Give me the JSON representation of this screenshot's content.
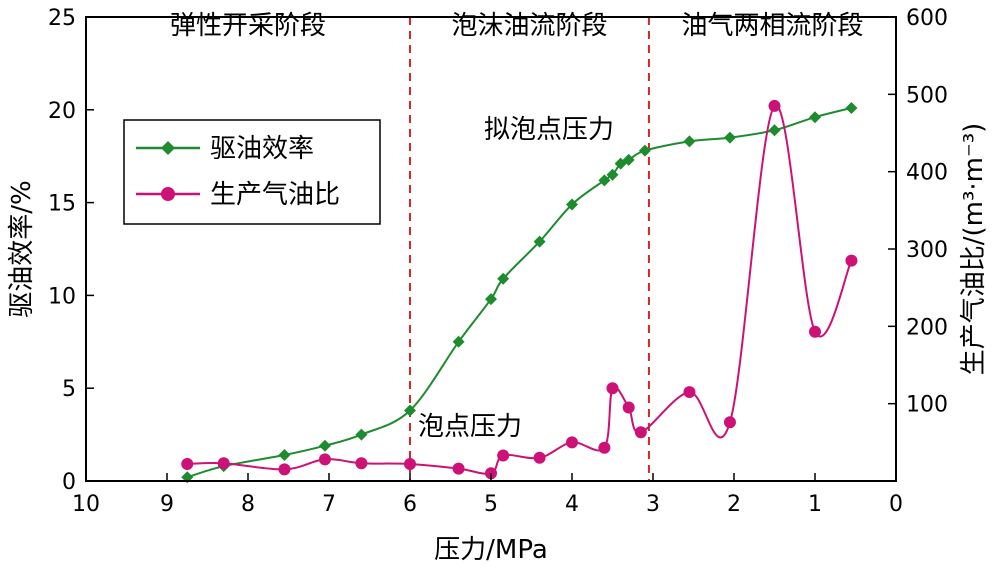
{
  "chart_data": {
    "type": "line",
    "xlabel": "压力/MPa",
    "ylabel_left": "驱油效率/%",
    "ylabel_right": "生产气油比/(m³·m⁻³)",
    "xlim": [
      10,
      0
    ],
    "x_reversed": true,
    "ylim_left": [
      0,
      25
    ],
    "ylim_right": [
      0,
      600
    ],
    "x_ticks": [
      "10",
      "9",
      "8",
      "7",
      "6",
      "5",
      "4",
      "3",
      "2",
      "1",
      "0"
    ],
    "y_left_ticks": [
      "0",
      "5",
      "10",
      "15",
      "20",
      "25"
    ],
    "y_right_ticks": [
      "100",
      "200",
      "300",
      "400",
      "500",
      "600"
    ],
    "grid": false,
    "legend_position": "upper-left",
    "region_boundaries": [
      6.0,
      3.05
    ],
    "region_labels": [
      "弹性开采阶段",
      "泡沫油流阶段",
      "油气两相流阶段"
    ],
    "annotations": [
      "泡点压力",
      "拟泡点压力"
    ],
    "series": [
      {
        "name": "驱油效率",
        "axis": "left",
        "color": "#1e8c2e",
        "marker": "diamond",
        "x": [
          8.75,
          8.3,
          7.55,
          7.05,
          6.6,
          6.0,
          5.4,
          5.0,
          4.85,
          4.4,
          4.0,
          3.6,
          3.5,
          3.4,
          3.3,
          3.1,
          2.55,
          2.05,
          1.5,
          1.0,
          0.55
        ],
        "y": [
          0.2,
          0.8,
          1.4,
          1.9,
          2.5,
          3.8,
          7.5,
          9.8,
          10.9,
          12.9,
          14.9,
          16.2,
          16.5,
          17.1,
          17.3,
          17.8,
          18.3,
          18.5,
          18.9,
          19.6,
          20.1
        ]
      },
      {
        "name": "生产气油比",
        "axis": "right",
        "color": "#cc1177",
        "marker": "circle",
        "x": [
          8.75,
          8.3,
          7.55,
          7.05,
          6.6,
          6.0,
          5.4,
          5.0,
          4.85,
          4.4,
          4.0,
          3.6,
          3.5,
          3.3,
          3.15,
          2.55,
          2.05,
          1.5,
          1.0,
          0.55
        ],
        "y": [
          22,
          23,
          15,
          28,
          23,
          22,
          16,
          10,
          33,
          30,
          50,
          43,
          120,
          95,
          63,
          115,
          76,
          485,
          193,
          285
        ]
      }
    ]
  },
  "colors": {
    "green": "#1e8c2e",
    "magenta": "#cc1177",
    "boundary": "#d62728",
    "axis": "#000000"
  }
}
